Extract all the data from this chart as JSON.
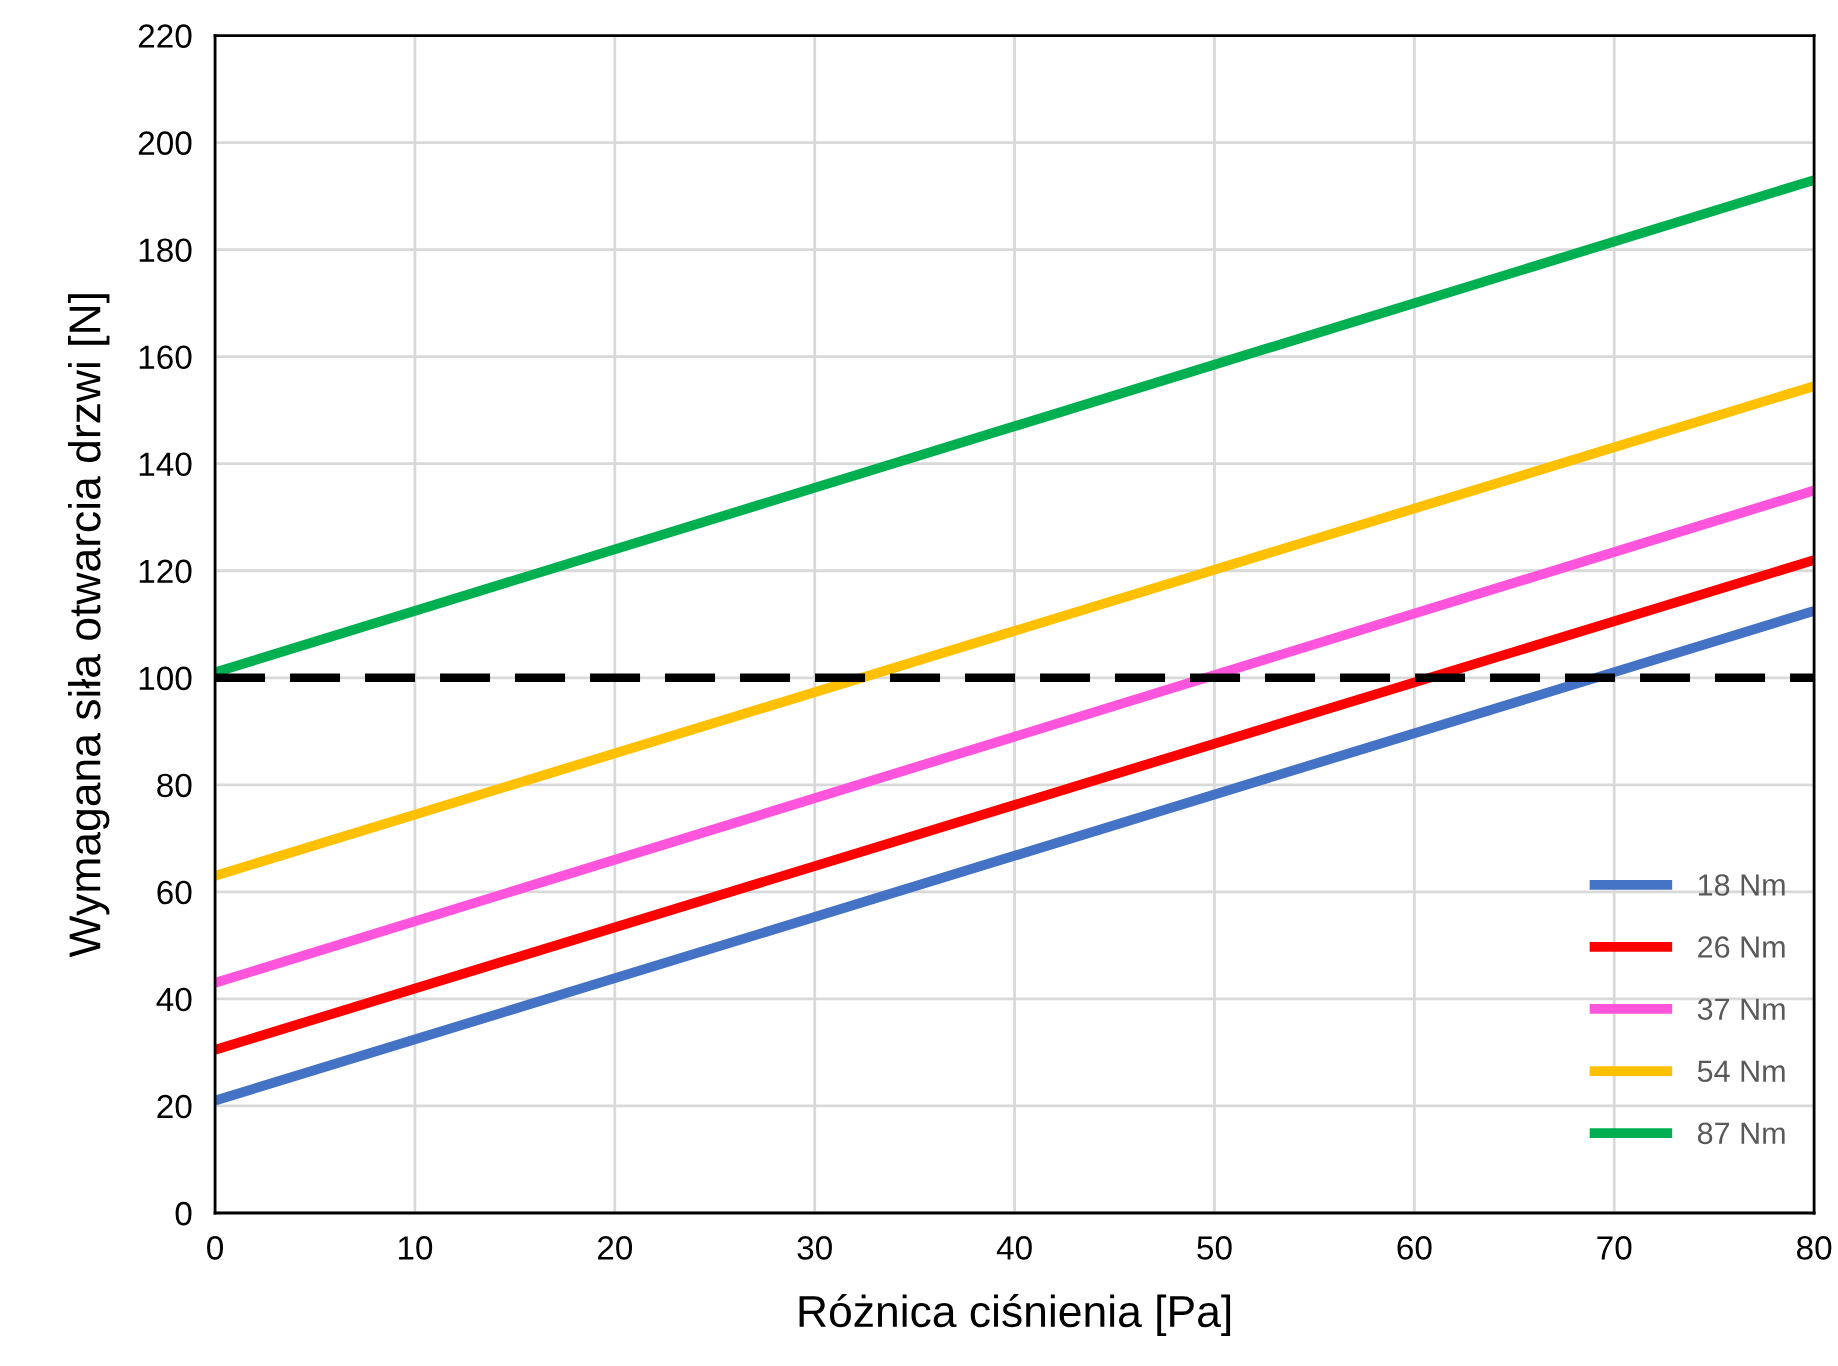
{
  "chart_data": {
    "type": "line",
    "xlabel": "Różnica ciśnienia [Pa]",
    "ylabel": "Wymagana siła otwarcia drzwi [N]",
    "x": [
      0,
      80
    ],
    "xlim": [
      0,
      80
    ],
    "xticks": [
      0,
      10,
      20,
      30,
      40,
      50,
      60,
      70,
      80
    ],
    "ylim": [
      0,
      220
    ],
    "yticks": [
      0,
      20,
      40,
      60,
      80,
      100,
      120,
      140,
      160,
      180,
      200,
      220
    ],
    "grid": true,
    "legend": "bottom right",
    "marker": "none",
    "line_style": "solid",
    "series": [
      {
        "name": "18 Nm",
        "color": "#4472c4",
        "values": [
          21,
          112.5
        ]
      },
      {
        "name": "26 Nm",
        "color": "#ff0000",
        "values": [
          30.5,
          122
        ]
      },
      {
        "name": "37 Nm",
        "color": "#ff55dd",
        "values": [
          43,
          135
        ]
      },
      {
        "name": "54 Nm",
        "color": "#ffc000",
        "values": [
          63,
          154.5
        ]
      },
      {
        "name": "87 Nm",
        "color": "#00b050",
        "values": [
          101,
          193
        ]
      }
    ],
    "ref_lines": [
      {
        "axis": "y",
        "value": 100,
        "color": "#000000",
        "line_style": "dashed"
      }
    ]
  }
}
